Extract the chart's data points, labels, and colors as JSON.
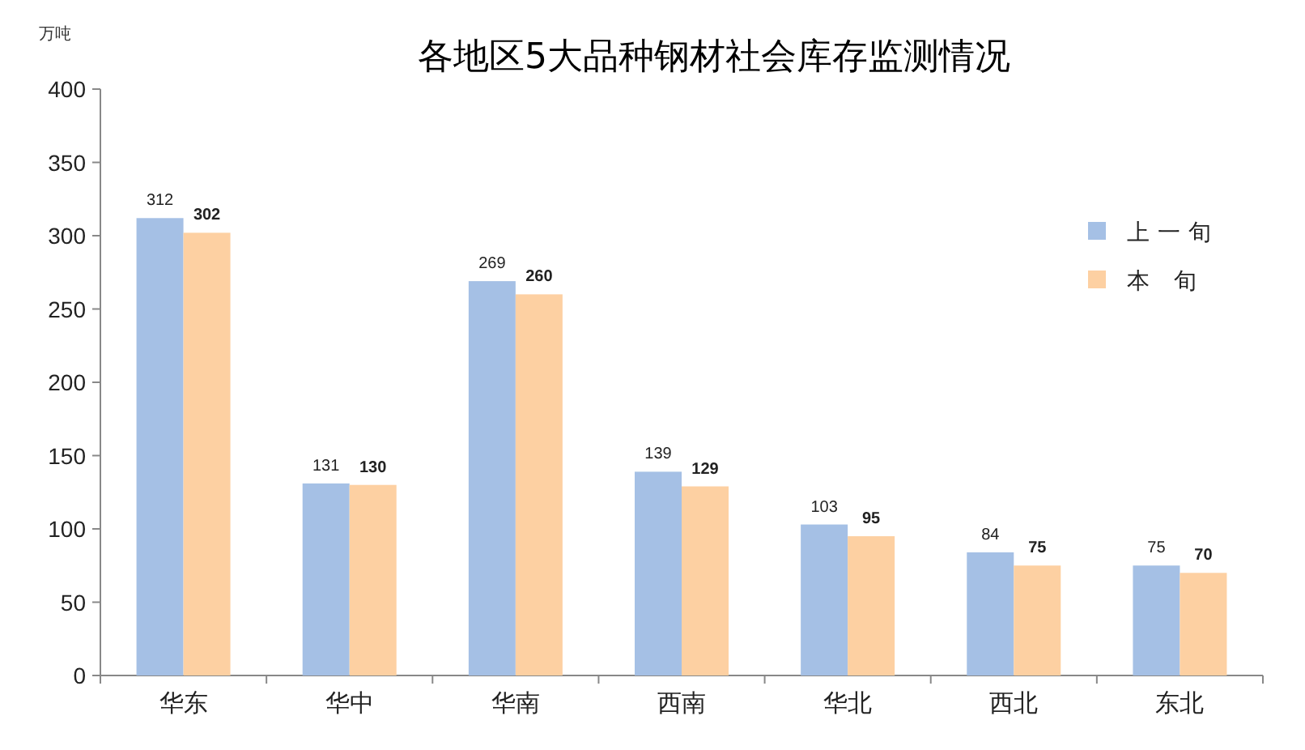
{
  "chart_data": {
    "type": "bar",
    "title": "各地区5大品种钢材社会库存监测情况",
    "ylabel": "万吨",
    "categories": [
      "华东",
      "华中",
      "华南",
      "西南",
      "华北",
      "西北",
      "东北"
    ],
    "series": [
      {
        "name": "上一旬",
        "color": "#a5c0e5",
        "values": [
          312,
          131,
          269,
          139,
          103,
          84,
          75
        ]
      },
      {
        "name": "本旬",
        "color": "#fdd0a2",
        "values": [
          302,
          130,
          260,
          129,
          95,
          75,
          70
        ]
      }
    ],
    "ylim": [
      0,
      400
    ],
    "yticks": [
      0,
      50,
      100,
      150,
      200,
      250,
      300,
      350,
      400
    ],
    "data_labels": true,
    "legend": "right"
  }
}
